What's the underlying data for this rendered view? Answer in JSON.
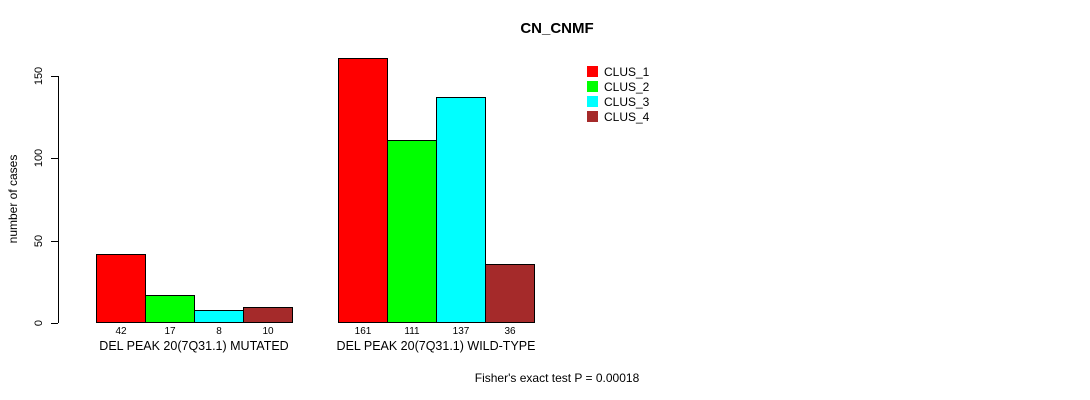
{
  "title": "CN_CNMF",
  "footer": "Fisher's exact test P = 0.00018",
  "y_axis": {
    "label": "number of cases",
    "ticks": [
      0,
      50,
      100,
      150
    ]
  },
  "legend": {
    "position": "top-right",
    "items": [
      {
        "label": "CLUS_1",
        "color": "#FF0000"
      },
      {
        "label": "CLUS_2",
        "color": "#00FF00"
      },
      {
        "label": "CLUS_3",
        "color": "#00FFFF"
      },
      {
        "label": "CLUS_4",
        "color": "#A52A2A"
      }
    ]
  },
  "chart_data": {
    "type": "bar",
    "title": "CN_CNMF",
    "ylabel": "number of cases",
    "xlabel": "",
    "ylim": [
      0,
      150
    ],
    "grid": false,
    "bar_value_labels_shown": true,
    "categories": [
      "DEL PEAK 20(7Q31.1) MUTATED",
      "DEL PEAK 20(7Q31.1) WILD-TYPE"
    ],
    "series": [
      {
        "name": "CLUS_1",
        "color": "#FF0000",
        "values": [
          42,
          161
        ]
      },
      {
        "name": "CLUS_2",
        "color": "#00FF00",
        "values": [
          17,
          111
        ]
      },
      {
        "name": "CLUS_3",
        "color": "#00FFFF",
        "values": [
          8,
          137
        ]
      },
      {
        "name": "CLUS_4",
        "color": "#A52A2A",
        "values": [
          10,
          36
        ]
      }
    ],
    "annotations": [
      "Fisher's exact test P = 0.00018"
    ]
  }
}
